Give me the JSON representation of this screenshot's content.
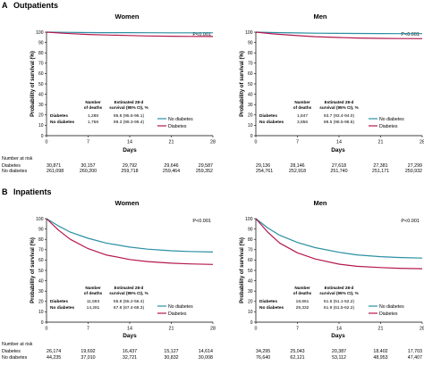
{
  "panels": [
    {
      "letter": "A",
      "title": "Outpatients",
      "charts": [
        {
          "title": "Women",
          "p_value": "P<0.001",
          "table_headers": [
            "Number\nof deaths",
            "Estimated 28-d\nsurvival (95% CI), %"
          ],
          "table_rows": [
            {
              "group": "Diabetes",
              "deaths": "1,288",
              "survival": "95.8 (95.6-96.1)"
            },
            {
              "group": "No diabetes",
              "deaths": "1,758",
              "survival": "99.3 (99.3-99.4)"
            }
          ],
          "risk": {
            "times": [
              "0",
              "7",
              "14",
              "21",
              "28"
            ],
            "rows": [
              {
                "group": "Diabetes",
                "values": [
                  "30,871",
                  "30,157",
                  "29,792",
                  "29,646",
                  "29,587"
                ]
              },
              {
                "group": "No diabetes",
                "values": [
                  "261,098",
                  "260,200",
                  "259,718",
                  "259,464",
                  "259,352"
                ]
              }
            ]
          }
        },
        {
          "title": "Men",
          "p_value": "P<0.001",
          "table_headers": [
            "Number\nof deaths",
            "Estimated 28-d\nsurvival (95% CI), %"
          ],
          "table_rows": [
            {
              "group": "Diabetes",
              "deaths": "1,847",
              "survival": "93.7 (93.4-94.0)"
            },
            {
              "group": "No diabetes",
              "deaths": "3,856",
              "survival": "98.5 (98.5-98.5)"
            }
          ],
          "risk": {
            "times": [
              "0",
              "7",
              "14",
              "21",
              "28"
            ],
            "rows": [
              {
                "group": "Diabetes",
                "values": [
                  "29,136",
                  "28,146",
                  "27,618",
                  "27,381",
                  "27,299"
                ]
              },
              {
                "group": "No diabetes",
                "values": [
                  "254,761",
                  "252,918",
                  "251,740",
                  "251,171",
                  "250,932"
                ]
              }
            ]
          }
        }
      ]
    },
    {
      "letter": "B",
      "title": "Inpatients",
      "charts": [
        {
          "title": "Women",
          "p_value": "P<0.001",
          "table_headers": [
            "Number\nof deaths",
            "Estimated 28-d\nsurvival (95% CI), %"
          ],
          "table_rows": [
            {
              "group": "Diabetes",
              "deaths": "11,593",
              "survival": "55.8 (55.2-56.4)"
            },
            {
              "group": "No diabetes",
              "deaths": "14,281",
              "survival": "67.8 (67.4-68.3)"
            }
          ],
          "risk": {
            "times": [
              "0",
              "7",
              "14",
              "21",
              "28"
            ],
            "rows": [
              {
                "group": "Diabetes",
                "values": [
                  "26,174",
                  "19,692",
                  "16,437",
                  "15,127",
                  "14,614"
                ]
              },
              {
                "group": "No diabetes",
                "values": [
                  "44,235",
                  "37,010",
                  "32,721",
                  "30,832",
                  "30,008"
                ]
              }
            ]
          }
        },
        {
          "title": "Men",
          "p_value": "P<0.001",
          "table_headers": [
            "Number\nof deaths",
            "Estimated 28-d\nsurvival (95% CI), %"
          ],
          "table_rows": [
            {
              "group": "Diabetes",
              "deaths": "18,661",
              "survival": "51.6 (51.1-52.2)"
            },
            {
              "group": "No diabetes",
              "deaths": "29,332",
              "survival": "61.9 (61.5-62.2)"
            }
          ],
          "risk": {
            "times": [
              "0",
              "7",
              "14",
              "21",
              "28"
            ],
            "rows": [
              {
                "group": "Diabetes",
                "values": [
                  "34,295",
                  "25,043",
                  "20,387",
                  "18,402",
                  "17,703"
                ]
              },
              {
                "group": "No diabetes",
                "values": [
                  "76,640",
                  "62,121",
                  "53,112",
                  "48,953",
                  "47,407"
                ]
              }
            ]
          }
        }
      ]
    }
  ],
  "risk_title": "Number at risk",
  "legend_entries": [
    {
      "name": "No diabetes",
      "color": "#2a8fa3"
    },
    {
      "name": "Diabetes",
      "color": "#b5174e"
    }
  ],
  "chart_data": [
    {
      "type": "line",
      "title": "Women",
      "xlabel": "Days",
      "ylabel": "Probability of survival (%)",
      "xlim": [
        0,
        28
      ],
      "ylim": [
        0,
        100
      ],
      "xticks": [
        0,
        7,
        14,
        21,
        28
      ],
      "yticks": [
        0,
        10,
        20,
        30,
        40,
        50,
        60,
        70,
        80,
        90,
        100
      ],
      "legend": "bottom-right",
      "series": [
        {
          "name": "No diabetes",
          "color": "#2a8fa3",
          "x": [
            0,
            3,
            7,
            10,
            14,
            17,
            21,
            24,
            28
          ],
          "y": [
            100,
            99.8,
            99.6,
            99.5,
            99.45,
            99.4,
            99.35,
            99.33,
            99.3
          ]
        },
        {
          "name": "Diabetes",
          "color": "#b5174e",
          "x": [
            0,
            3,
            7,
            10,
            14,
            17,
            21,
            24,
            28
          ],
          "y": [
            100,
            98.9,
            97.8,
            97.2,
            96.7,
            96.3,
            96.0,
            95.9,
            95.8
          ]
        }
      ]
    },
    {
      "type": "line",
      "title": "Men",
      "xlabel": "Days",
      "ylabel": "Probability of survival (%)",
      "xlim": [
        0,
        28
      ],
      "ylim": [
        0,
        100
      ],
      "xticks": [
        0,
        7,
        14,
        21,
        28
      ],
      "yticks": [
        0,
        10,
        20,
        30,
        40,
        50,
        60,
        70,
        80,
        90,
        100
      ],
      "legend": "bottom-right",
      "series": [
        {
          "name": "No diabetes",
          "color": "#2a8fa3",
          "x": [
            0,
            3,
            7,
            10,
            14,
            17,
            21,
            24,
            28
          ],
          "y": [
            100,
            99.6,
            99.2,
            99.0,
            98.8,
            98.7,
            98.6,
            98.55,
            98.5
          ]
        },
        {
          "name": "Diabetes",
          "color": "#b5174e",
          "x": [
            0,
            3,
            7,
            10,
            14,
            17,
            21,
            24,
            28
          ],
          "y": [
            100,
            98.3,
            96.6,
            95.6,
            94.8,
            94.3,
            94.0,
            93.8,
            93.7
          ]
        }
      ]
    },
    {
      "type": "line",
      "title": "Women",
      "xlabel": "Days",
      "ylabel": "Probability of survival (%)",
      "xlim": [
        0,
        28
      ],
      "ylim": [
        0,
        100
      ],
      "xticks": [
        0,
        7,
        14,
        21,
        28
      ],
      "yticks": [
        0,
        10,
        20,
        30,
        40,
        50,
        60,
        70,
        80,
        90,
        100
      ],
      "legend": "bottom-right",
      "series": [
        {
          "name": "No diabetes",
          "color": "#2a8fa3",
          "x": [
            0,
            2,
            4,
            7,
            10,
            14,
            17,
            21,
            24,
            28
          ],
          "y": [
            100,
            93,
            87,
            81,
            76.5,
            72.5,
            70.5,
            69,
            68.3,
            67.8
          ]
        },
        {
          "name": "Diabetes",
          "color": "#b5174e",
          "x": [
            0,
            2,
            4,
            7,
            10,
            14,
            17,
            21,
            24,
            28
          ],
          "y": [
            100,
            89,
            80,
            71,
            65,
            60.5,
            58.5,
            57,
            56.3,
            55.8
          ]
        }
      ]
    },
    {
      "type": "line",
      "title": "Men",
      "xlabel": "Days",
      "ylabel": "Probability of survival (%)",
      "xlim": [
        0,
        28
      ],
      "ylim": [
        0,
        100
      ],
      "xticks": [
        0,
        7,
        14,
        21,
        28
      ],
      "yticks": [
        0,
        10,
        20,
        30,
        40,
        50,
        60,
        70,
        80,
        90,
        100
      ],
      "legend": "bottom-right",
      "series": [
        {
          "name": "No diabetes",
          "color": "#2a8fa3",
          "x": [
            0,
            2,
            4,
            7,
            10,
            14,
            17,
            21,
            24,
            28
          ],
          "y": [
            100,
            91,
            84,
            77,
            72,
            67.5,
            65,
            63.3,
            62.5,
            61.9
          ]
        },
        {
          "name": "Diabetes",
          "color": "#b5174e",
          "x": [
            0,
            2,
            4,
            7,
            10,
            14,
            17,
            21,
            24,
            28
          ],
          "y": [
            100,
            87,
            76.5,
            67,
            61,
            56,
            54,
            52.8,
            52.1,
            51.6
          ]
        }
      ]
    }
  ]
}
